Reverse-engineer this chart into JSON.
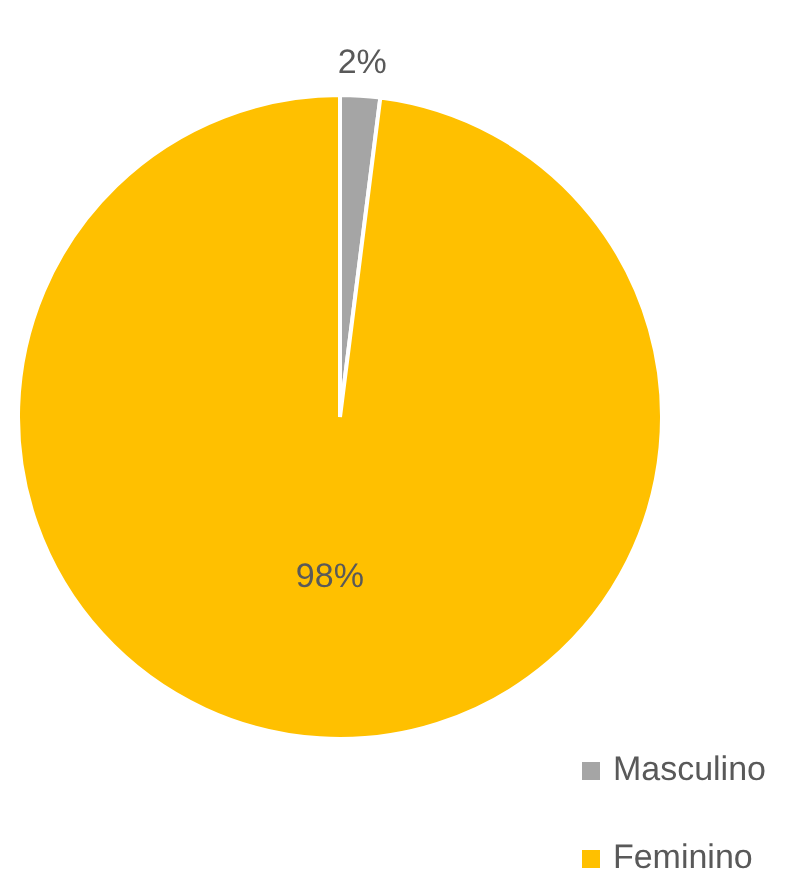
{
  "chart_data": {
    "type": "pie",
    "categories": [
      "Masculino",
      "Feminino"
    ],
    "values": [
      2,
      98
    ],
    "colors": [
      "#a5a5a5",
      "#ffc000"
    ],
    "value_labels": [
      "2%",
      "98%"
    ],
    "legend": "bottom right"
  }
}
